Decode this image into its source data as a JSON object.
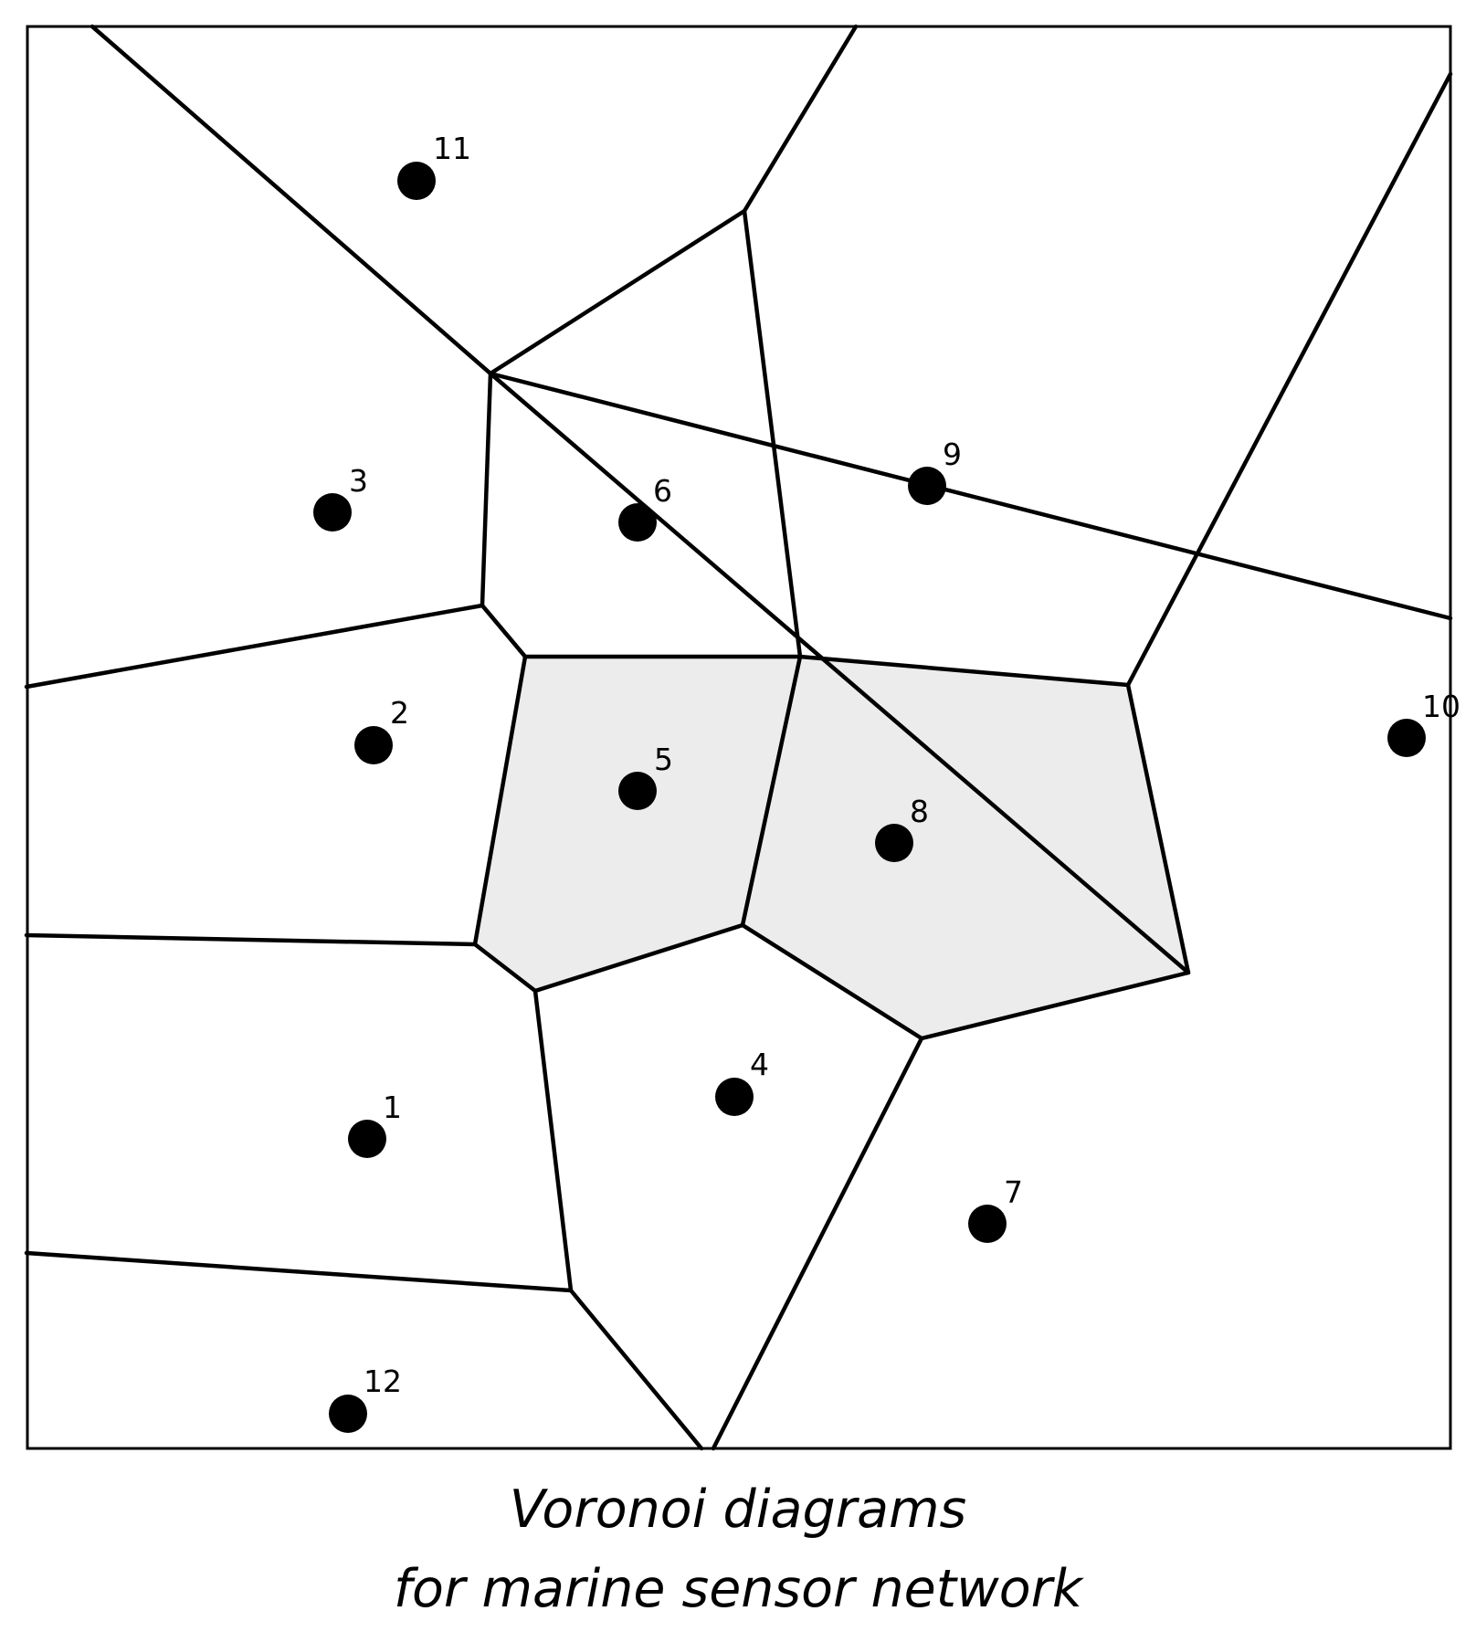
{
  "caption": {
    "line1": "Voronoi diagrams",
    "line2": "for marine sensor network"
  },
  "colors": {
    "background": "#ffffff",
    "edge": "#000000",
    "highlight_fill": "#ececec",
    "site": "#000000"
  },
  "sites": [
    {
      "id": "1",
      "label": "1"
    },
    {
      "id": "2",
      "label": "2"
    },
    {
      "id": "3",
      "label": "3"
    },
    {
      "id": "4",
      "label": "4"
    },
    {
      "id": "5",
      "label": "5"
    },
    {
      "id": "6",
      "label": "6"
    },
    {
      "id": "7",
      "label": "7"
    },
    {
      "id": "8",
      "label": "8"
    },
    {
      "id": "9",
      "label": "9"
    },
    {
      "id": "10",
      "label": "10"
    },
    {
      "id": "11",
      "label": "11"
    },
    {
      "id": "12",
      "label": "12"
    }
  ],
  "highlighted_cells": [
    "5",
    "8"
  ]
}
